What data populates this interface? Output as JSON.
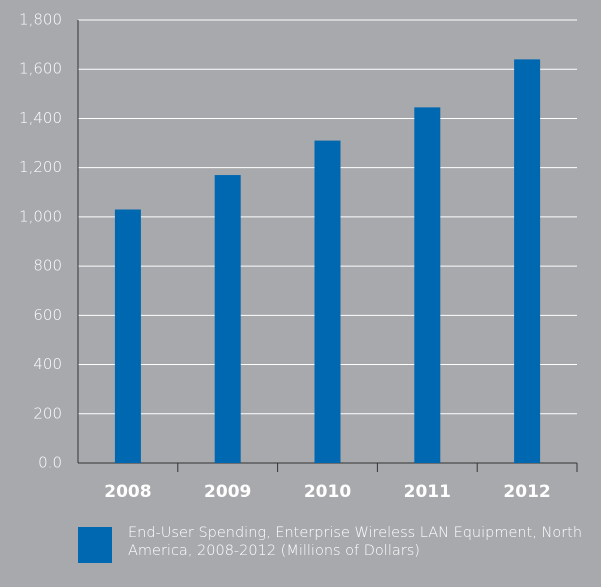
{
  "chart_data": {
    "type": "bar",
    "categories": [
      "2008",
      "2009",
      "2010",
      "2011",
      "2012"
    ],
    "series": [
      {
        "name": "End-User Spending, Enterprise Wireless LAN Equipment, North America, 2008-2012 (Millions of Dollars)",
        "color": "#0067b1",
        "values": [
          1030,
          1170,
          1310,
          1445,
          1640
        ]
      }
    ],
    "ylim": [
      0,
      1800
    ],
    "yticks": [
      {
        "value": 0,
        "label": "0.0"
      },
      200,
      400,
      600,
      800,
      {
        "value": 1000,
        "label": "1,000"
      },
      {
        "value": 1200,
        "label": "1,200"
      },
      {
        "value": 1400,
        "label": "1,400"
      },
      {
        "value": 1600,
        "label": "1,600"
      },
      {
        "value": 1800,
        "label": "1,800"
      }
    ],
    "grid": true,
    "legend": "bottom"
  }
}
